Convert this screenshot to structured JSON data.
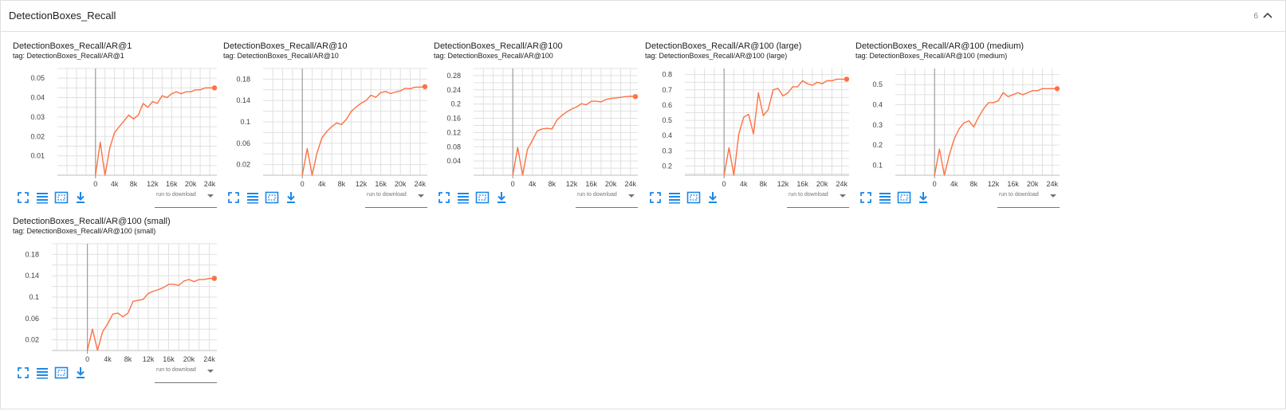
{
  "pane": {
    "title": "DetectionBoxes_Recall",
    "count": "6"
  },
  "toolbar": {
    "run_select_label": "run to download"
  },
  "colors": {
    "series": "#ff7043",
    "grid": "#e0e0e0",
    "axis": "#9e9e9e",
    "icon": "#1e88e5"
  },
  "chart_data": [
    {
      "type": "line",
      "title": "DetectionBoxes_Recall/AR@1",
      "tag": "tag: DetectionBoxes_Recall/AR@1",
      "x_ticks": [
        "0",
        "4k",
        "8k",
        "12k",
        "16k",
        "20k",
        "24k"
      ],
      "x_tick_values": [
        0,
        4000,
        8000,
        12000,
        16000,
        20000,
        24000
      ],
      "y_ticks": [
        "0.01",
        "0.02",
        "0.03",
        "0.04",
        "0.05"
      ],
      "y_tick_values": [
        0.01,
        0.02,
        0.03,
        0.04,
        0.05
      ],
      "xlim": [
        -8000,
        25500
      ],
      "ylim": [
        0,
        0.055
      ],
      "grid": true,
      "series": [
        {
          "x": [
            0,
            1000,
            2000,
            3000,
            4000,
            5000,
            6000,
            7000,
            8000,
            9000,
            10000,
            11000,
            12000,
            13000,
            14000,
            15000,
            16000,
            17000,
            18000,
            19000,
            20000,
            21000,
            22000,
            23000,
            24000,
            25000
          ],
          "y": [
            0.0,
            0.017,
            0.0,
            0.014,
            0.022,
            0.025,
            0.028,
            0.031,
            0.029,
            0.031,
            0.037,
            0.035,
            0.038,
            0.037,
            0.041,
            0.04,
            0.042,
            0.043,
            0.042,
            0.043,
            0.043,
            0.044,
            0.044,
            0.045,
            0.045,
            0.045
          ]
        }
      ]
    },
    {
      "type": "line",
      "title": "DetectionBoxes_Recall/AR@10",
      "tag": "tag: DetectionBoxes_Recall/AR@10",
      "x_ticks": [
        "0",
        "4k",
        "8k",
        "12k",
        "16k",
        "20k",
        "24k"
      ],
      "x_tick_values": [
        0,
        4000,
        8000,
        12000,
        16000,
        20000,
        24000
      ],
      "y_ticks": [
        "0.02",
        "0.06",
        "0.1",
        "0.14",
        "0.18"
      ],
      "y_tick_values": [
        0.02,
        0.06,
        0.1,
        0.14,
        0.18
      ],
      "xlim": [
        -8000,
        25500
      ],
      "ylim": [
        0,
        0.2
      ],
      "grid": true,
      "series": [
        {
          "x": [
            0,
            1000,
            2000,
            3000,
            4000,
            5000,
            6000,
            7000,
            8000,
            9000,
            10000,
            11000,
            12000,
            13000,
            14000,
            15000,
            16000,
            17000,
            18000,
            19000,
            20000,
            21000,
            22000,
            23000,
            24000,
            25000
          ],
          "y": [
            0.0,
            0.05,
            0.0,
            0.042,
            0.07,
            0.082,
            0.091,
            0.098,
            0.095,
            0.105,
            0.12,
            0.128,
            0.135,
            0.14,
            0.15,
            0.146,
            0.155,
            0.157,
            0.153,
            0.156,
            0.158,
            0.163,
            0.162,
            0.165,
            0.165,
            0.166
          ]
        }
      ]
    },
    {
      "type": "line",
      "title": "DetectionBoxes_Recall/AR@100",
      "tag": "tag: DetectionBoxes_Recall/AR@100",
      "x_ticks": [
        "0",
        "4k",
        "8k",
        "12k",
        "16k",
        "20k",
        "24k"
      ],
      "x_tick_values": [
        0,
        4000,
        8000,
        12000,
        16000,
        20000,
        24000
      ],
      "y_ticks": [
        "0.04",
        "0.08",
        "0.12",
        "0.16",
        "0.2",
        "0.24",
        "0.28"
      ],
      "y_tick_values": [
        0.04,
        0.08,
        0.12,
        0.16,
        0.2,
        0.24,
        0.28
      ],
      "xlim": [
        -8000,
        25500
      ],
      "ylim": [
        0,
        0.3
      ],
      "grid": true,
      "series": [
        {
          "x": [
            0,
            1000,
            2000,
            3000,
            4000,
            5000,
            6000,
            7000,
            8000,
            9000,
            10000,
            11000,
            12000,
            13000,
            14000,
            15000,
            16000,
            17000,
            18000,
            19000,
            20000,
            21000,
            22000,
            23000,
            24000,
            25000
          ],
          "y": [
            0.0,
            0.078,
            0.0,
            0.073,
            0.098,
            0.125,
            0.13,
            0.132,
            0.13,
            0.155,
            0.168,
            0.178,
            0.186,
            0.192,
            0.201,
            0.198,
            0.208,
            0.208,
            0.206,
            0.213,
            0.216,
            0.217,
            0.219,
            0.221,
            0.222,
            0.221
          ]
        }
      ]
    },
    {
      "type": "line",
      "title": "DetectionBoxes_Recall/AR@100 (large)",
      "tag": "tag: DetectionBoxes_Recall/AR@100 (large)",
      "x_ticks": [
        "0",
        "4k",
        "8k",
        "12k",
        "16k",
        "20k",
        "24k"
      ],
      "x_tick_values": [
        0,
        4000,
        8000,
        12000,
        16000,
        20000,
        24000
      ],
      "y_ticks": [
        "0.2",
        "0.3",
        "0.4",
        "0.5",
        "0.6",
        "0.7",
        "0.8"
      ],
      "y_tick_values": [
        0.2,
        0.3,
        0.4,
        0.5,
        0.6,
        0.7,
        0.8
      ],
      "xlim": [
        -8000,
        25500
      ],
      "ylim": [
        0.14,
        0.84
      ],
      "grid": true,
      "series": [
        {
          "x": [
            0,
            1000,
            2000,
            3000,
            4000,
            5000,
            6000,
            7000,
            8000,
            9000,
            10000,
            11000,
            12000,
            13000,
            14000,
            15000,
            16000,
            17000,
            18000,
            19000,
            20000,
            21000,
            22000,
            23000,
            24000,
            25000
          ],
          "y": [
            0.14,
            0.32,
            0.14,
            0.41,
            0.52,
            0.54,
            0.41,
            0.68,
            0.53,
            0.57,
            0.7,
            0.71,
            0.66,
            0.68,
            0.72,
            0.72,
            0.76,
            0.74,
            0.73,
            0.75,
            0.74,
            0.76,
            0.76,
            0.77,
            0.77,
            0.77
          ]
        }
      ]
    },
    {
      "type": "line",
      "title": "DetectionBoxes_Recall/AR@100 (medium)",
      "tag": "tag: DetectionBoxes_Recall/AR@100 (medium)",
      "x_ticks": [
        "0",
        "4k",
        "8k",
        "12k",
        "16k",
        "20k",
        "24k"
      ],
      "x_tick_values": [
        0,
        4000,
        8000,
        12000,
        16000,
        20000,
        24000
      ],
      "y_ticks": [
        "0.1",
        "0.2",
        "0.3",
        "0.4",
        "0.5"
      ],
      "y_tick_values": [
        0.1,
        0.2,
        0.3,
        0.4,
        0.5
      ],
      "xlim": [
        -8000,
        25500
      ],
      "ylim": [
        0.05,
        0.58
      ],
      "grid": true,
      "series": [
        {
          "x": [
            0,
            1000,
            2000,
            3000,
            4000,
            5000,
            6000,
            7000,
            8000,
            9000,
            10000,
            11000,
            12000,
            13000,
            14000,
            15000,
            16000,
            17000,
            18000,
            19000,
            20000,
            21000,
            22000,
            23000,
            24000,
            25000
          ],
          "y": [
            0.05,
            0.18,
            0.05,
            0.15,
            0.23,
            0.28,
            0.31,
            0.32,
            0.29,
            0.34,
            0.38,
            0.41,
            0.41,
            0.42,
            0.46,
            0.44,
            0.45,
            0.46,
            0.45,
            0.46,
            0.47,
            0.47,
            0.48,
            0.48,
            0.48,
            0.48
          ]
        }
      ]
    },
    {
      "type": "line",
      "title": "DetectionBoxes_Recall/AR@100 (small)",
      "tag": "tag: DetectionBoxes_Recall/AR@100 (small)",
      "x_ticks": [
        "0",
        "4k",
        "8k",
        "12k",
        "16k",
        "20k",
        "24k"
      ],
      "x_tick_values": [
        0,
        4000,
        8000,
        12000,
        16000,
        20000,
        24000
      ],
      "y_ticks": [
        "0.02",
        "0.06",
        "0.1",
        "0.14",
        "0.18"
      ],
      "y_tick_values": [
        0.02,
        0.06,
        0.1,
        0.14,
        0.18
      ],
      "xlim": [
        -7000,
        25500
      ],
      "ylim": [
        0,
        0.2
      ],
      "grid": true,
      "series": [
        {
          "x": [
            0,
            1000,
            2000,
            3000,
            4000,
            5000,
            6000,
            7000,
            8000,
            9000,
            10000,
            11000,
            12000,
            13000,
            14000,
            15000,
            16000,
            17000,
            18000,
            19000,
            20000,
            21000,
            22000,
            23000,
            24000,
            25000
          ],
          "y": [
            0.0,
            0.04,
            0.0,
            0.035,
            0.05,
            0.068,
            0.07,
            0.063,
            0.07,
            0.092,
            0.094,
            0.096,
            0.107,
            0.111,
            0.114,
            0.118,
            0.124,
            0.124,
            0.122,
            0.13,
            0.133,
            0.129,
            0.133,
            0.133,
            0.135,
            0.135
          ]
        }
      ]
    }
  ]
}
